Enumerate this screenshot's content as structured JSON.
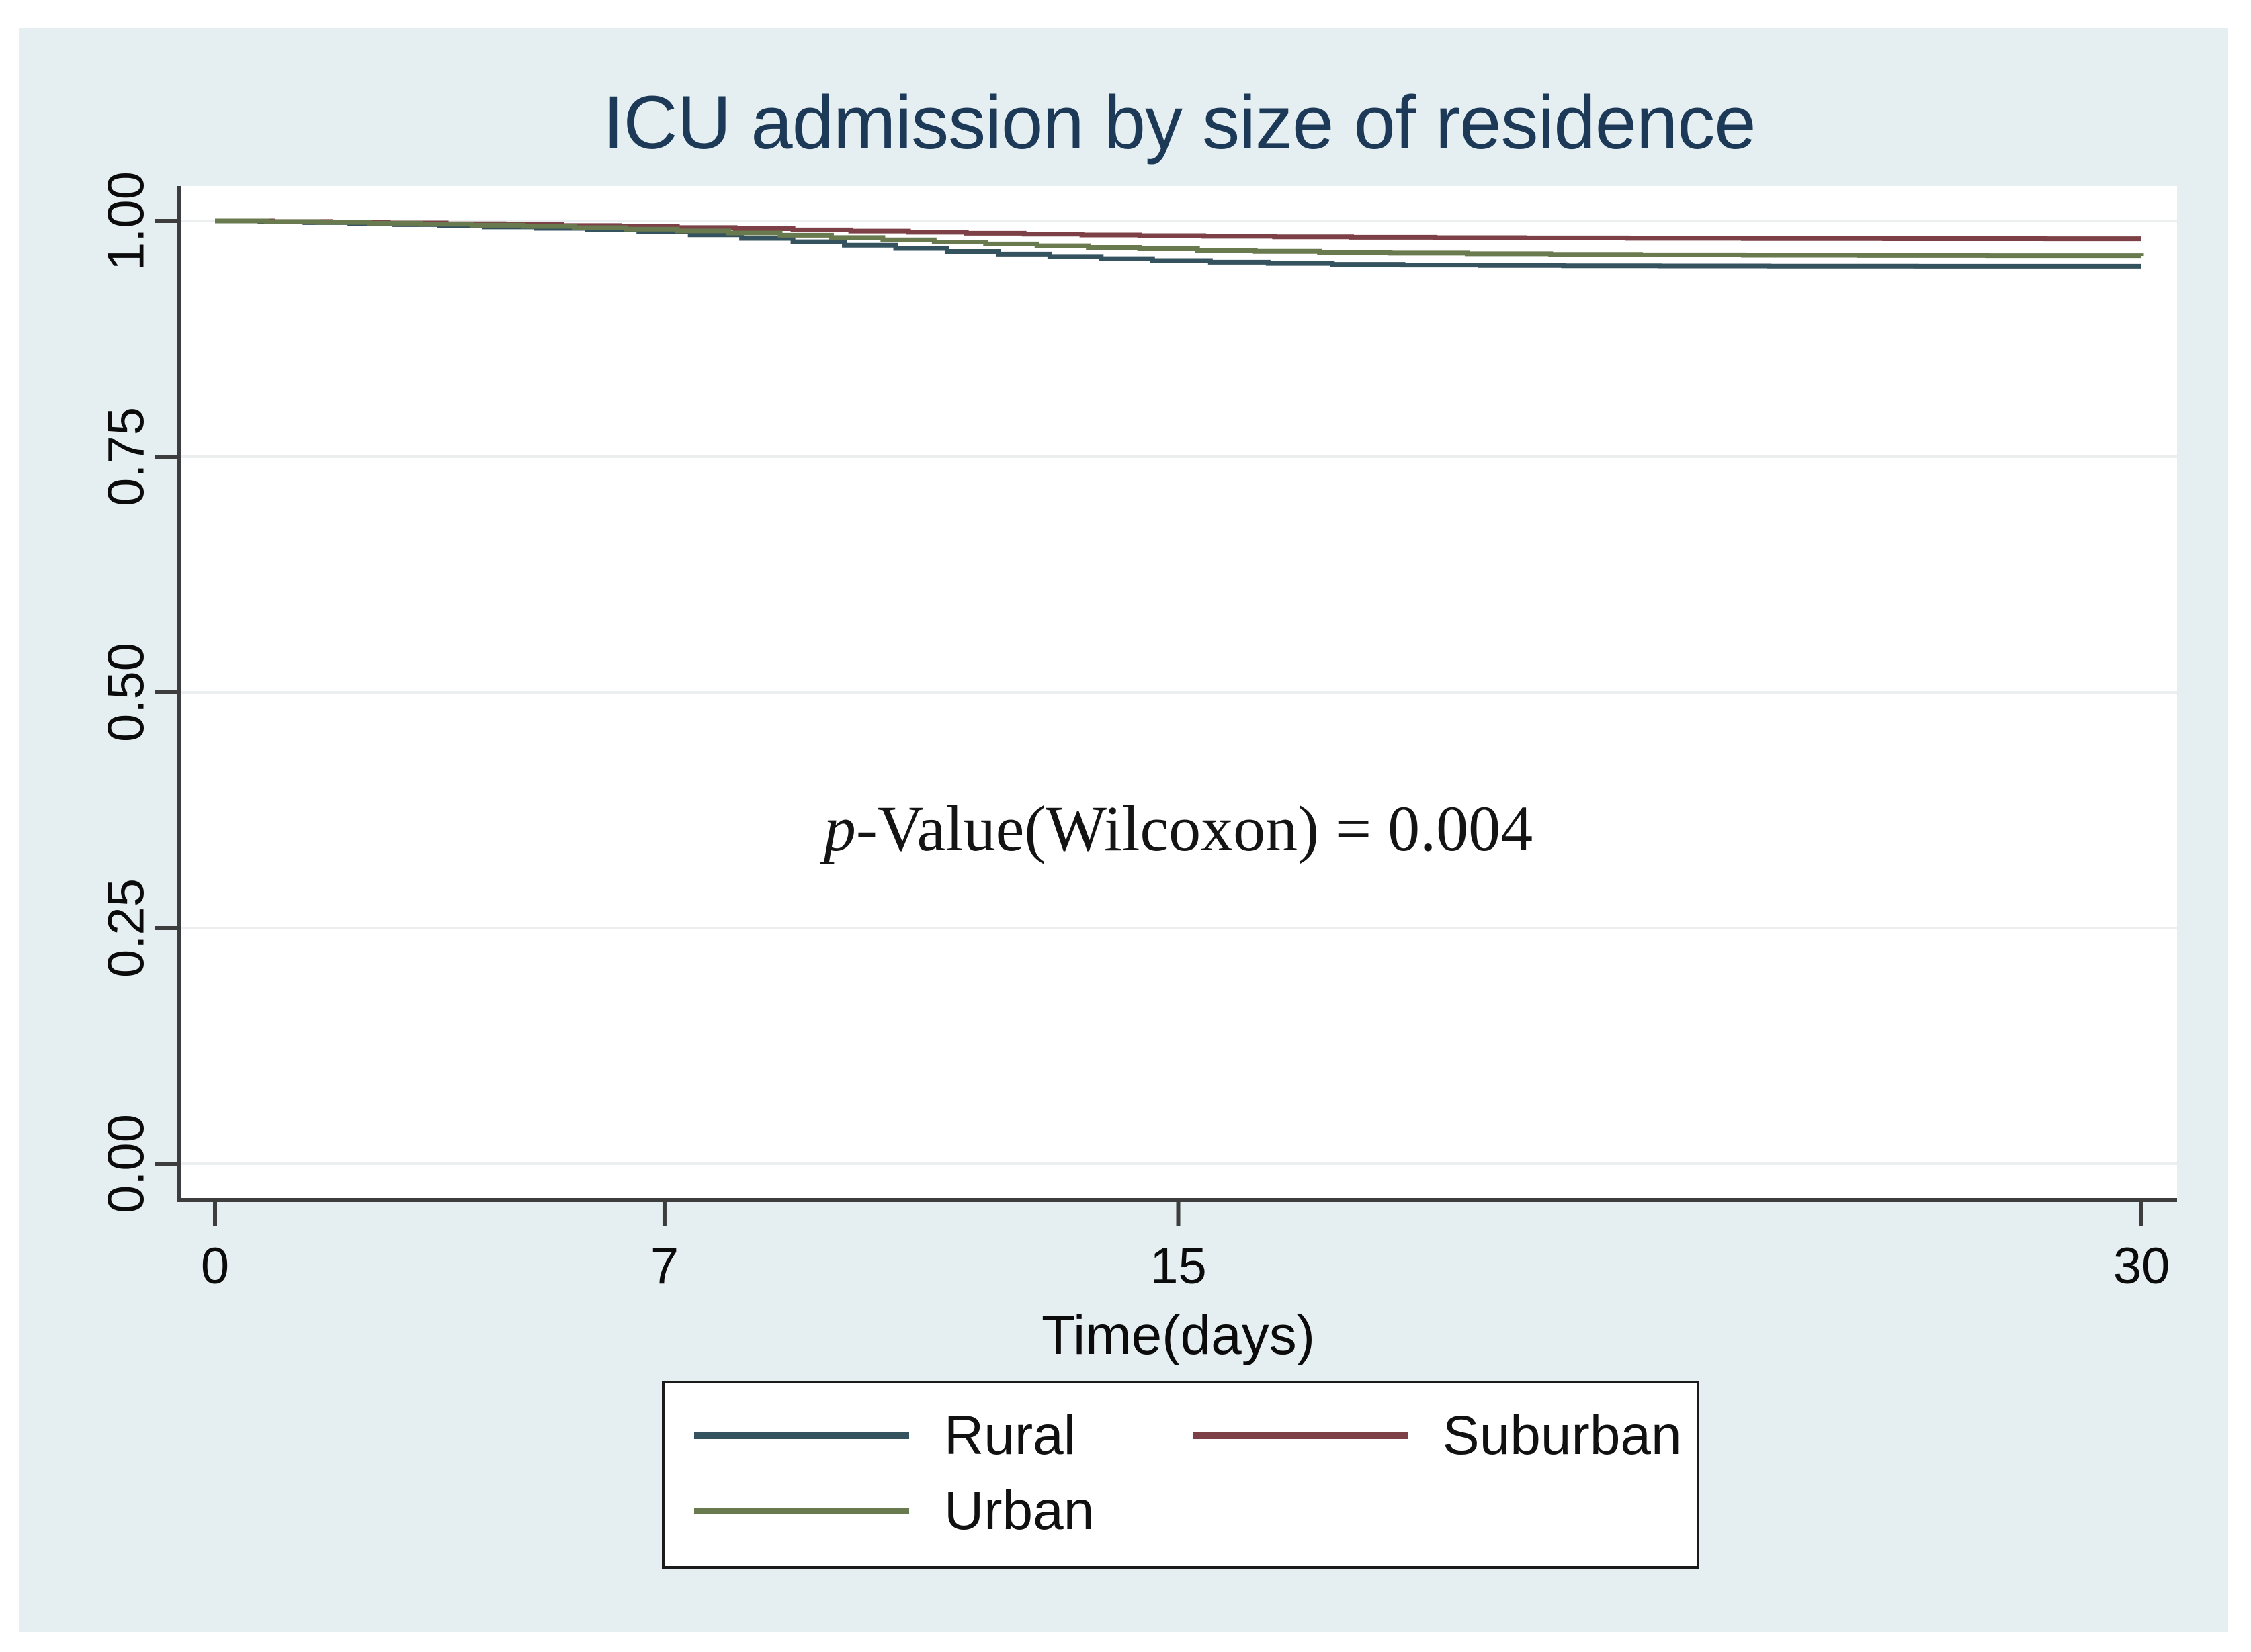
{
  "title": "ICU admission by size of residence",
  "annotation": {
    "italic": "p",
    "rest": "-Value(Wilcoxon) = 0.004"
  },
  "colors": {
    "panel_background": "#e5eef0",
    "plot_background": "#ffffff",
    "axis": "#3d3d3d",
    "gridline": "#eceff0",
    "title_text": "#1c3a57",
    "rural_line": "#35535f",
    "suburban_line": "#7d4046",
    "urban_line": "#697a4f"
  },
  "chart_data": {
    "type": "line",
    "subtype": "kaplan-meier-step-survival",
    "title": "ICU admission by size of residence",
    "xlabel": "Time(days)",
    "ylabel": "",
    "xlim": [
      0,
      30
    ],
    "ylim": [
      0,
      1
    ],
    "xticks": [
      "0",
      "7",
      "15",
      "30"
    ],
    "yticks": [
      "0.00",
      "0.25",
      "0.50",
      "0.75",
      "1.00"
    ],
    "grid": "horizontal",
    "legend_position": "bottom-center",
    "annotation": "p-Value(Wilcoxon) = 0.004",
    "series": [
      {
        "name": "Rural",
        "color": "#35535f",
        "end_value": 0.952,
        "steps": [
          [
            0,
            1.0
          ],
          [
            0.7,
            0.9992
          ],
          [
            1.4,
            0.9983
          ],
          [
            2.1,
            0.9973
          ],
          [
            2.8,
            0.9962
          ],
          [
            3.5,
            0.995
          ],
          [
            4.2,
            0.9937
          ],
          [
            5.0,
            0.9922
          ],
          [
            5.8,
            0.9905
          ],
          [
            6.6,
            0.9884
          ],
          [
            7.4,
            0.9852
          ],
          [
            8.2,
            0.9815
          ],
          [
            9.0,
            0.9778
          ],
          [
            9.8,
            0.9742
          ],
          [
            10.6,
            0.9708
          ],
          [
            11.4,
            0.9676
          ],
          [
            12.2,
            0.9648
          ],
          [
            13.0,
            0.9623
          ],
          [
            13.8,
            0.96
          ],
          [
            14.6,
            0.958
          ],
          [
            15.5,
            0.9563
          ],
          [
            16.4,
            0.955
          ],
          [
            17.4,
            0.954
          ],
          [
            18.5,
            0.9533
          ],
          [
            19.7,
            0.9528
          ],
          [
            21.0,
            0.9525
          ],
          [
            22.5,
            0.9523
          ],
          [
            24.2,
            0.9521
          ],
          [
            26.5,
            0.952
          ],
          [
            30,
            0.952
          ]
        ]
      },
      {
        "name": "Suburban",
        "color": "#7d4046",
        "end_value": 0.981,
        "steps": [
          [
            0,
            1.0
          ],
          [
            0.9,
            0.9994
          ],
          [
            1.8,
            0.9987
          ],
          [
            2.7,
            0.9979
          ],
          [
            3.6,
            0.997
          ],
          [
            4.5,
            0.9961
          ],
          [
            5.4,
            0.9951
          ],
          [
            6.3,
            0.9941
          ],
          [
            7.2,
            0.993
          ],
          [
            8.1,
            0.9918
          ],
          [
            9.0,
            0.9905
          ],
          [
            9.9,
            0.9892
          ],
          [
            10.8,
            0.988
          ],
          [
            11.7,
            0.9869
          ],
          [
            12.6,
            0.9859
          ],
          [
            13.5,
            0.985
          ],
          [
            14.4,
            0.9843
          ],
          [
            15.4,
            0.9837
          ],
          [
            16.5,
            0.9831
          ],
          [
            17.7,
            0.9826
          ],
          [
            19.0,
            0.9822
          ],
          [
            20.4,
            0.9819
          ],
          [
            22.0,
            0.9816
          ],
          [
            23.8,
            0.9813
          ],
          [
            26.0,
            0.9811
          ],
          [
            28.5,
            0.981
          ],
          [
            30,
            0.981
          ]
        ]
      },
      {
        "name": "Urban",
        "color": "#697a4f",
        "end_value": 0.963,
        "steps": [
          [
            0,
            1.0
          ],
          [
            0.8,
            0.9993
          ],
          [
            1.6,
            0.9985
          ],
          [
            2.4,
            0.9976
          ],
          [
            3.2,
            0.9966
          ],
          [
            4.0,
            0.9955
          ],
          [
            4.8,
            0.9943
          ],
          [
            5.6,
            0.9929
          ],
          [
            6.4,
            0.9913
          ],
          [
            7.2,
            0.9894
          ],
          [
            8.0,
            0.9872
          ],
          [
            8.8,
            0.9848
          ],
          [
            9.6,
            0.9823
          ],
          [
            10.4,
            0.9799
          ],
          [
            11.2,
            0.9776
          ],
          [
            12.0,
            0.9755
          ],
          [
            12.8,
            0.9736
          ],
          [
            13.6,
            0.9719
          ],
          [
            14.4,
            0.9704
          ],
          [
            15.3,
            0.969
          ],
          [
            16.2,
            0.9678
          ],
          [
            17.2,
            0.9668
          ],
          [
            18.3,
            0.9659
          ],
          [
            19.5,
            0.9652
          ],
          [
            20.8,
            0.9646
          ],
          [
            22.2,
            0.9641
          ],
          [
            23.8,
            0.9637
          ],
          [
            25.6,
            0.9634
          ],
          [
            27.6,
            0.9632
          ],
          [
            30,
            0.963
          ]
        ]
      }
    ]
  }
}
